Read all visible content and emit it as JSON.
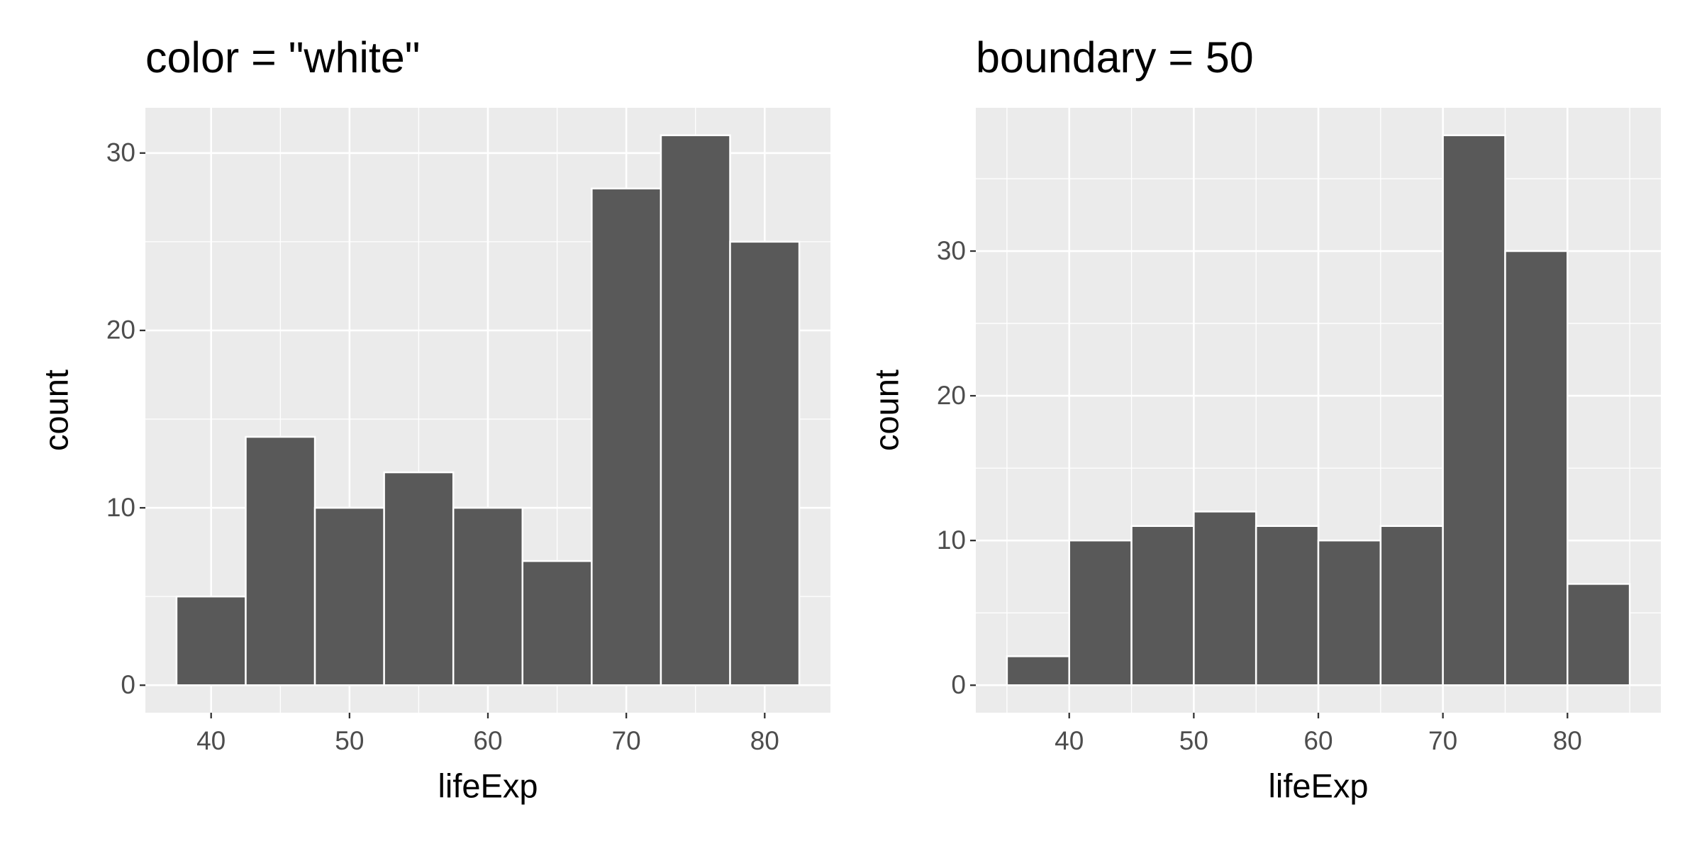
{
  "chart_data": [
    {
      "type": "histogram",
      "title": "color = \"white\"",
      "x_label": "lifeExp",
      "y_label": "count",
      "bins": [
        37.5,
        42.5,
        47.5,
        52.5,
        57.5,
        62.5,
        67.5,
        72.5,
        77.5,
        82.5
      ],
      "counts": [
        5,
        14,
        10,
        12,
        10,
        7,
        28,
        31,
        25
      ],
      "color": "#595959",
      "edge_color": "#ffffff",
      "xlim": [
        35.25,
        84.75
      ],
      "ylim": [
        -1.55,
        32.55
      ],
      "xticks": [
        40,
        50,
        60,
        70,
        80
      ],
      "yticks": [
        0,
        10,
        20,
        30
      ],
      "x_minor_ticks": [
        45,
        55,
        65,
        75
      ],
      "y_minor_ticks": [
        5,
        15,
        25
      ],
      "grid": true
    },
    {
      "type": "histogram",
      "title": "boundary = 50",
      "x_label": "lifeExp",
      "y_label": "count",
      "bins": [
        35,
        40,
        45,
        50,
        55,
        60,
        65,
        70,
        75,
        80,
        85
      ],
      "counts": [
        2,
        10,
        11,
        12,
        11,
        10,
        11,
        38,
        30,
        7
      ],
      "color": "#595959",
      "edge_color": "#ffffff",
      "xlim": [
        32.5,
        87.5
      ],
      "ylim": [
        -1.9,
        39.9
      ],
      "xticks": [
        40,
        50,
        60,
        70,
        80
      ],
      "yticks": [
        0,
        10,
        20,
        30
      ],
      "x_minor_ticks": [
        35,
        45,
        55,
        65,
        75,
        85
      ],
      "y_minor_ticks": [
        5,
        15,
        25,
        35
      ],
      "grid": true
    }
  ]
}
